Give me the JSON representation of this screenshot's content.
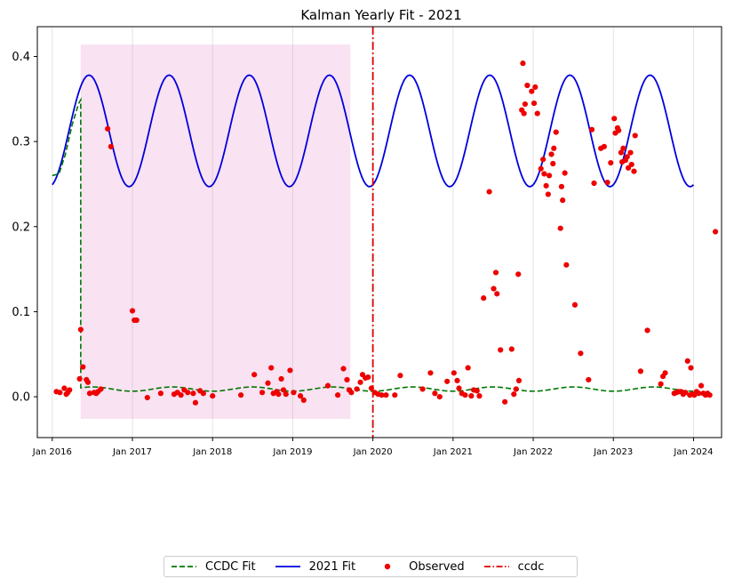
{
  "chart_data": {
    "type": "line",
    "title": "Kalman Yearly Fit - 2021",
    "xlabel": "",
    "ylabel": "",
    "x_ticks": [
      "Jan 2016",
      "Jan 2017",
      "Jan 2018",
      "Jan 2019",
      "Jan 2020",
      "Jan 2021",
      "Jan 2022",
      "Jan 2023",
      "Jan 2024"
    ],
    "y_ticks": [
      "0.0",
      "0.1",
      "0.2",
      "0.3",
      "0.4"
    ],
    "xlim": [
      "2015-10-25",
      "2024-05-08"
    ],
    "ylim": [
      -0.048,
      0.435
    ],
    "grid": "vertical",
    "legend_position": "bottom-center",
    "shaded_region": {
      "x_start": "2016-05-10",
      "x_end": "2019-09-20",
      "y_start": -0.026,
      "y_end": 0.414,
      "color": "#f8ddf0"
    },
    "vertical_line": {
      "name": "ccdc",
      "x": "2020-01-01",
      "color": "#dd0000",
      "style": "dashdot"
    },
    "series": [
      {
        "name": "CCDC Fit",
        "color": "#007700",
        "style": "dashed",
        "segments": [
          {
            "x_start": "2016-01-01",
            "x_end": "2016-05-10",
            "points": [
              [
                "2016-01-01",
                0.26
              ],
              [
                "2016-02-01",
                0.262
              ],
              [
                "2016-03-01",
                0.285
              ],
              [
                "2016-04-01",
                0.32
              ],
              [
                "2016-05-01",
                0.345
              ],
              [
                "2016-05-10",
                0.349
              ]
            ]
          },
          {
            "x_start": "2016-05-10",
            "x_end": "2024-01-01",
            "mean": 0.009,
            "amplitude": 0.0025,
            "period_years": 1.0,
            "peak_month": 7
          }
        ]
      },
      {
        "name": "2021 Fit",
        "color": "#0000dd",
        "style": "solid",
        "x_start": "2016-01-01",
        "x_end": "2024-01-01",
        "mean": 0.3125,
        "amplitude": 0.0655,
        "period_years": 1.0,
        "peak_month": 6.5
      },
      {
        "name": "Observed",
        "color": "#ee0000",
        "style": "markers",
        "points": [
          [
            "2016-01-20",
            0.006
          ],
          [
            "2016-02-05",
            0.005
          ],
          [
            "2016-02-25",
            0.01
          ],
          [
            "2016-03-05",
            0.003
          ],
          [
            "2016-03-12",
            0.005
          ],
          [
            "2016-03-20",
            0.008
          ],
          [
            "2016-05-05",
            0.021
          ],
          [
            "2016-05-10",
            0.079
          ],
          [
            "2016-05-20",
            0.035
          ],
          [
            "2016-06-05",
            0.02
          ],
          [
            "2016-06-12",
            0.017
          ],
          [
            "2016-06-20",
            0.004
          ],
          [
            "2016-07-10",
            0.005
          ],
          [
            "2016-07-20",
            0.004
          ],
          [
            "2016-07-28",
            0.006
          ],
          [
            "2016-08-10",
            0.009
          ],
          [
            "2016-09-10",
            0.315
          ],
          [
            "2016-09-25",
            0.294
          ],
          [
            "2017-01-01",
            0.101
          ],
          [
            "2017-01-10",
            0.09
          ],
          [
            "2017-01-20",
            0.09
          ],
          [
            "2017-03-10",
            -0.001
          ],
          [
            "2017-05-10",
            0.004
          ],
          [
            "2017-07-10",
            0.003
          ],
          [
            "2017-07-25",
            0.005
          ],
          [
            "2017-08-10",
            0.002
          ],
          [
            "2017-08-25",
            0.008
          ],
          [
            "2017-09-10",
            0.005
          ],
          [
            "2017-10-05",
            0.004
          ],
          [
            "2017-10-15",
            -0.007
          ],
          [
            "2017-11-05",
            0.007
          ],
          [
            "2017-11-20",
            0.004
          ],
          [
            "2018-01-01",
            0.001
          ],
          [
            "2018-05-10",
            0.002
          ],
          [
            "2018-07-10",
            0.026
          ],
          [
            "2018-08-15",
            0.005
          ],
          [
            "2018-09-10",
            0.016
          ],
          [
            "2018-09-25",
            0.034
          ],
          [
            "2018-10-05",
            0.004
          ],
          [
            "2018-10-20",
            0.006
          ],
          [
            "2018-10-28",
            0.003
          ],
          [
            "2018-11-10",
            0.021
          ],
          [
            "2018-11-20",
            0.008
          ],
          [
            "2018-12-01",
            0.003
          ],
          [
            "2018-12-20",
            0.031
          ],
          [
            "2019-01-05",
            0.005
          ],
          [
            "2019-02-05",
            0.001
          ],
          [
            "2019-02-20",
            -0.004
          ],
          [
            "2019-06-10",
            0.013
          ],
          [
            "2019-07-25",
            0.002
          ],
          [
            "2019-08-20",
            0.033
          ],
          [
            "2019-09-05",
            0.02
          ],
          [
            "2019-09-15",
            0.008
          ],
          [
            "2019-09-25",
            0.005
          ],
          [
            "2019-10-20",
            0.009
          ],
          [
            "2019-11-05",
            0.017
          ],
          [
            "2019-11-15",
            0.026
          ],
          [
            "2019-11-28",
            0.022
          ],
          [
            "2019-12-10",
            0.023
          ],
          [
            "2019-12-25",
            0.01
          ],
          [
            "2020-01-10",
            0.005
          ],
          [
            "2020-01-25",
            0.003
          ],
          [
            "2020-02-10",
            0.002
          ],
          [
            "2020-03-01",
            0.002
          ],
          [
            "2020-04-10",
            0.002
          ],
          [
            "2020-05-05",
            0.025
          ],
          [
            "2020-08-15",
            0.009
          ],
          [
            "2020-09-20",
            0.028
          ],
          [
            "2020-10-10",
            0.004
          ],
          [
            "2020-11-01",
            0.0
          ],
          [
            "2020-12-05",
            0.018
          ],
          [
            "2021-01-05",
            0.028
          ],
          [
            "2021-01-20",
            0.019
          ],
          [
            "2021-01-28",
            0.01
          ],
          [
            "2021-02-10",
            0.004
          ],
          [
            "2021-02-25",
            0.002
          ],
          [
            "2021-03-10",
            0.034
          ],
          [
            "2021-03-25",
            0.001
          ],
          [
            "2021-04-05",
            0.008
          ],
          [
            "2021-04-20",
            0.007
          ],
          [
            "2021-05-01",
            0.001
          ],
          [
            "2021-05-20",
            0.116
          ],
          [
            "2021-06-15",
            0.241
          ],
          [
            "2021-07-05",
            0.127
          ],
          [
            "2021-07-15",
            0.146
          ],
          [
            "2021-07-20",
            0.121
          ],
          [
            "2021-08-05",
            0.055
          ],
          [
            "2021-08-25",
            -0.006
          ],
          [
            "2021-09-25",
            0.056
          ],
          [
            "2021-10-05",
            0.003
          ],
          [
            "2021-10-15",
            0.009
          ],
          [
            "2021-10-25",
            0.144
          ],
          [
            "2021-10-28",
            0.019
          ],
          [
            "2021-11-10",
            0.337
          ],
          [
            "2021-11-15",
            0.392
          ],
          [
            "2021-11-20",
            0.333
          ],
          [
            "2021-11-25",
            0.344
          ],
          [
            "2021-12-05",
            0.366
          ],
          [
            "2021-12-25",
            0.359
          ],
          [
            "2022-01-05",
            0.345
          ],
          [
            "2022-01-10",
            0.364
          ],
          [
            "2022-01-20",
            0.333
          ],
          [
            "2022-02-05",
            0.268
          ],
          [
            "2022-02-15",
            0.279
          ],
          [
            "2022-02-20",
            0.262
          ],
          [
            "2022-03-01",
            0.248
          ],
          [
            "2022-03-10",
            0.238
          ],
          [
            "2022-03-15",
            0.26
          ],
          [
            "2022-03-25",
            0.285
          ],
          [
            "2022-04-01",
            0.274
          ],
          [
            "2022-04-05",
            0.292
          ],
          [
            "2022-04-15",
            0.311
          ],
          [
            "2022-05-05",
            0.198
          ],
          [
            "2022-05-10",
            0.247
          ],
          [
            "2022-05-15",
            0.231
          ],
          [
            "2022-05-25",
            0.263
          ],
          [
            "2022-06-01",
            0.155
          ],
          [
            "2022-07-10",
            0.108
          ],
          [
            "2022-08-05",
            0.051
          ],
          [
            "2022-09-10",
            0.02
          ],
          [
            "2022-09-25",
            0.314
          ],
          [
            "2022-10-05",
            0.251
          ],
          [
            "2022-11-05",
            0.292
          ],
          [
            "2022-11-20",
            0.294
          ],
          [
            "2022-12-05",
            0.252
          ],
          [
            "2022-12-20",
            0.275
          ],
          [
            "2023-01-05",
            0.327
          ],
          [
            "2023-01-10",
            0.31
          ],
          [
            "2023-01-20",
            0.316
          ],
          [
            "2023-01-25",
            0.313
          ],
          [
            "2023-02-05",
            0.287
          ],
          [
            "2023-02-10",
            0.276
          ],
          [
            "2023-02-15",
            0.292
          ],
          [
            "2023-02-25",
            0.278
          ],
          [
            "2023-03-05",
            0.282
          ],
          [
            "2023-03-10",
            0.269
          ],
          [
            "2023-03-20",
            0.287
          ],
          [
            "2023-03-25",
            0.273
          ],
          [
            "2023-04-05",
            0.265
          ],
          [
            "2023-04-10",
            0.307
          ],
          [
            "2023-05-05",
            0.03
          ],
          [
            "2023-06-05",
            0.078
          ],
          [
            "2023-08-05",
            0.015
          ],
          [
            "2023-08-15",
            0.024
          ],
          [
            "2023-08-25",
            0.028
          ],
          [
            "2023-10-05",
            0.004
          ],
          [
            "2023-10-15",
            0.005
          ],
          [
            "2023-10-25",
            0.006
          ],
          [
            "2023-11-05",
            0.006
          ],
          [
            "2023-11-15",
            0.003
          ],
          [
            "2023-11-25",
            0.005
          ],
          [
            "2023-12-05",
            0.042
          ],
          [
            "2023-12-15",
            0.002
          ],
          [
            "2023-12-20",
            0.034
          ],
          [
            "2023-12-25",
            0.003
          ],
          [
            "2024-01-05",
            0.002
          ],
          [
            "2024-01-15",
            0.006
          ],
          [
            "2024-01-25",
            0.004
          ],
          [
            "2024-02-05",
            0.013
          ],
          [
            "2024-02-15",
            0.004
          ],
          [
            "2024-02-25",
            0.002
          ],
          [
            "2024-03-05",
            0.004
          ],
          [
            "2024-03-15",
            0.002
          ],
          [
            "2024-04-10",
            0.194
          ]
        ]
      }
    ]
  },
  "legend": {
    "items": [
      {
        "label": "CCDC Fit",
        "icon": "dashed-line-icon",
        "color": "#007700"
      },
      {
        "label": "2021 Fit",
        "icon": "solid-line-icon",
        "color": "#0000dd"
      },
      {
        "label": "Observed",
        "icon": "dot-marker-icon",
        "color": "#ee0000"
      },
      {
        "label": "ccdc",
        "icon": "dashdot-line-icon",
        "color": "#dd0000"
      }
    ]
  }
}
